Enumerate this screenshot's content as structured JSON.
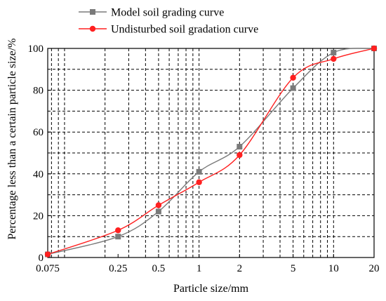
{
  "chart_data": {
    "type": "line",
    "xlabel": "Particle size/mm",
    "ylabel": "Percentage less than a certain particle size/%",
    "x_scale": "log",
    "xlim": [
      0.075,
      20
    ],
    "ylim": [
      0,
      100
    ],
    "xticks": [
      0.075,
      0.25,
      0.5,
      1,
      2,
      5,
      10,
      20
    ],
    "xtick_labels": [
      "0.075",
      "0.25",
      "0.5",
      "1",
      "2",
      "5",
      "10",
      "20"
    ],
    "yticks": [
      0,
      20,
      40,
      60,
      80,
      100
    ],
    "ytick_labels": [
      "0",
      "20",
      "40",
      "60",
      "80",
      "100"
    ],
    "grid": "dashed",
    "legend_position": "top-left, outside plot",
    "series": [
      {
        "name": "Model soil grading curve",
        "color": "#7a7a7a",
        "marker": "square",
        "x": [
          0.075,
          0.25,
          0.5,
          1,
          2,
          5,
          10,
          20
        ],
        "y": [
          1.5,
          10,
          22,
          41,
          53,
          81,
          98,
          100
        ]
      },
      {
        "name": "Undisturbed soil gradation curve",
        "color": "#ff2020",
        "marker": "circle",
        "x": [
          0.075,
          0.25,
          0.5,
          1,
          2,
          5,
          10,
          20
        ],
        "y": [
          1.5,
          13,
          25,
          36,
          49,
          86,
          95,
          100
        ]
      }
    ]
  }
}
